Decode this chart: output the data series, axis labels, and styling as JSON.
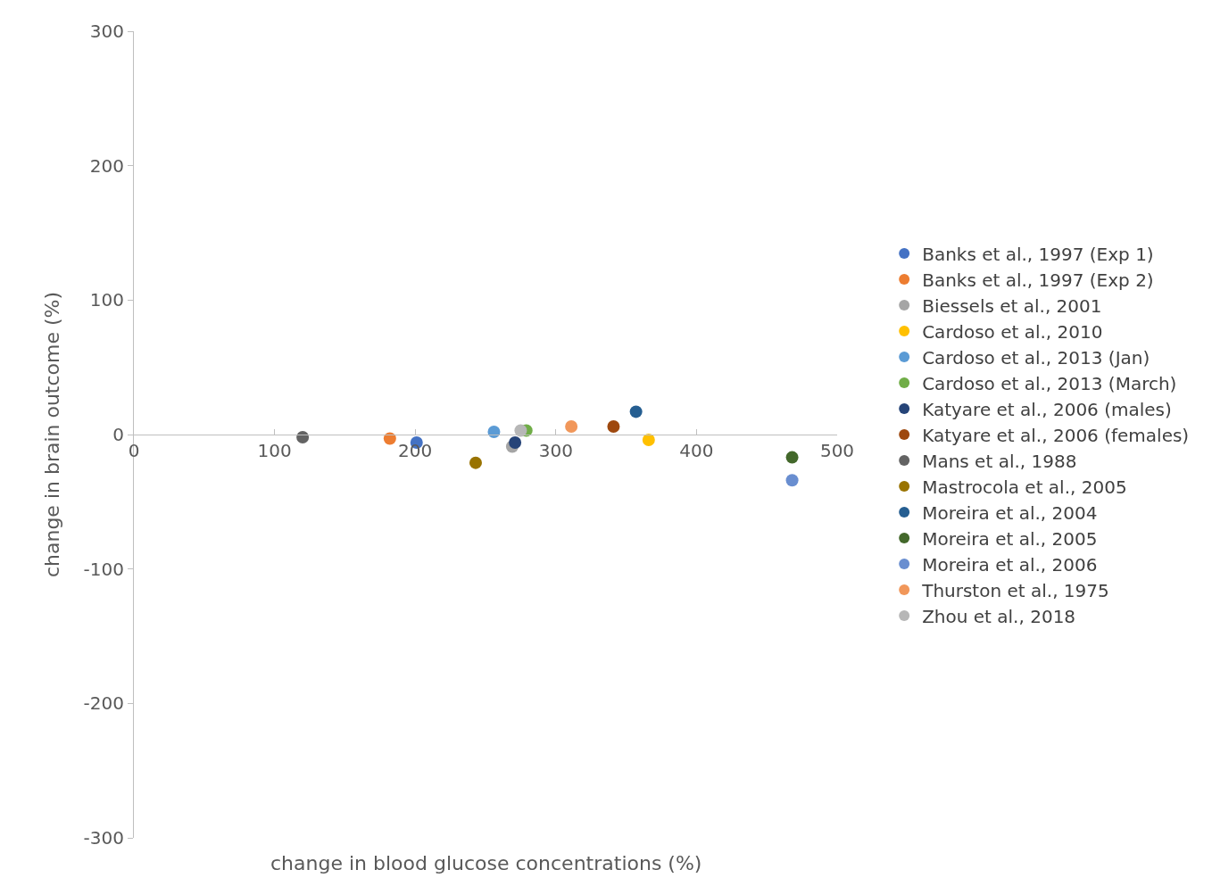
{
  "chart_data": {
    "type": "scatter",
    "xlabel": "change in blood glucose concentrations (%)",
    "ylabel": "change in brain outcome (%)",
    "xlim": [
      0,
      500
    ],
    "xticks": [
      0,
      100,
      200,
      300,
      400,
      500
    ],
    "ylim": [
      -300,
      300
    ],
    "yticks": [
      -300,
      -200,
      -100,
      0,
      100,
      200,
      300
    ],
    "legend": "right",
    "marker": "circle",
    "series": [
      {
        "name": "Banks et al., 1997 (Exp 1)",
        "color": "#4472c4",
        "x": [
          201
        ],
        "values": [
          -6
        ]
      },
      {
        "name": "Banks et al., 1997 (Exp 2)",
        "color": "#ed7d31",
        "x": [
          182
        ],
        "values": [
          -3
        ]
      },
      {
        "name": "Biessels et al., 2001",
        "color": "#a5a5a5",
        "x": [
          269
        ],
        "values": [
          -9
        ]
      },
      {
        "name": "Cardoso et al., 2010",
        "color": "#ffc000",
        "x": [
          366
        ],
        "values": [
          -4
        ]
      },
      {
        "name": "Cardoso et al., 2013 (Jan)",
        "color": "#5b9bd5",
        "x": [
          256
        ],
        "values": [
          2
        ]
      },
      {
        "name": "Cardoso et al., 2013 (March)",
        "color": "#70ad47",
        "x": [
          279
        ],
        "values": [
          3
        ]
      },
      {
        "name": "Katyare et al., 2006 (males)",
        "color": "#264478",
        "x": [
          271
        ],
        "values": [
          -6
        ]
      },
      {
        "name": "Katyare et al., 2006 (females)",
        "color": "#9e480e",
        "x": [
          341
        ],
        "values": [
          6
        ]
      },
      {
        "name": "Mans et al., 1988",
        "color": "#636363",
        "x": [
          120
        ],
        "values": [
          -2
        ]
      },
      {
        "name": "Mastrocola et al., 2005",
        "color": "#997300",
        "x": [
          243
        ],
        "values": [
          -21
        ]
      },
      {
        "name": "Moreira et al., 2004",
        "color": "#255e91",
        "x": [
          357
        ],
        "values": [
          17
        ]
      },
      {
        "name": "Moreira et al., 2005",
        "color": "#43682b",
        "x": [
          468
        ],
        "values": [
          -17
        ]
      },
      {
        "name": "Moreira et al., 2006",
        "color": "#698ed0",
        "x": [
          468
        ],
        "values": [
          -34
        ]
      },
      {
        "name": "Thurston et al., 1975",
        "color": "#f1975a",
        "x": [
          311
        ],
        "values": [
          6
        ]
      },
      {
        "name": "Zhou et al., 2018",
        "color": "#b7b7b7",
        "x": [
          275
        ],
        "values": [
          3
        ]
      }
    ]
  }
}
